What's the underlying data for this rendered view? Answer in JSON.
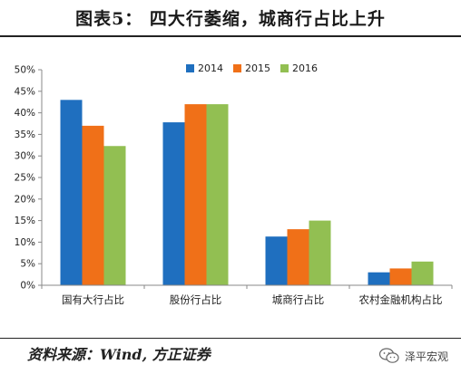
{
  "header": {
    "title": "图表5： 四大行萎缩，城商行占比上升"
  },
  "footer": {
    "source": "资料来源：Wind, 方正证券",
    "brand": "泽平宏观",
    "brand_icon": "wechat-icon"
  },
  "colors": {
    "s2014": "#1F6FBF",
    "s2015": "#F07018",
    "s2016": "#92BF52",
    "axis": "#888888"
  },
  "chart_data": {
    "type": "bar",
    "title": "",
    "xlabel": "",
    "ylabel": "",
    "categories": [
      "国有大行占比",
      "股份行占比",
      "城商行占比",
      "农村金融机构占比"
    ],
    "series": [
      {
        "name": "2014",
        "values": [
          43,
          37.8,
          11.3,
          3.0
        ]
      },
      {
        "name": "2015",
        "values": [
          37,
          42,
          13,
          3.9
        ]
      },
      {
        "name": "2016",
        "values": [
          32.3,
          42,
          15,
          5.5
        ]
      }
    ],
    "ylim": [
      0,
      50
    ],
    "yticks": [
      "0%",
      "5%",
      "10%",
      "15%",
      "20%",
      "25%",
      "30%",
      "35%",
      "40%",
      "45%",
      "50%"
    ],
    "legend": "top-center",
    "grid": false
  }
}
